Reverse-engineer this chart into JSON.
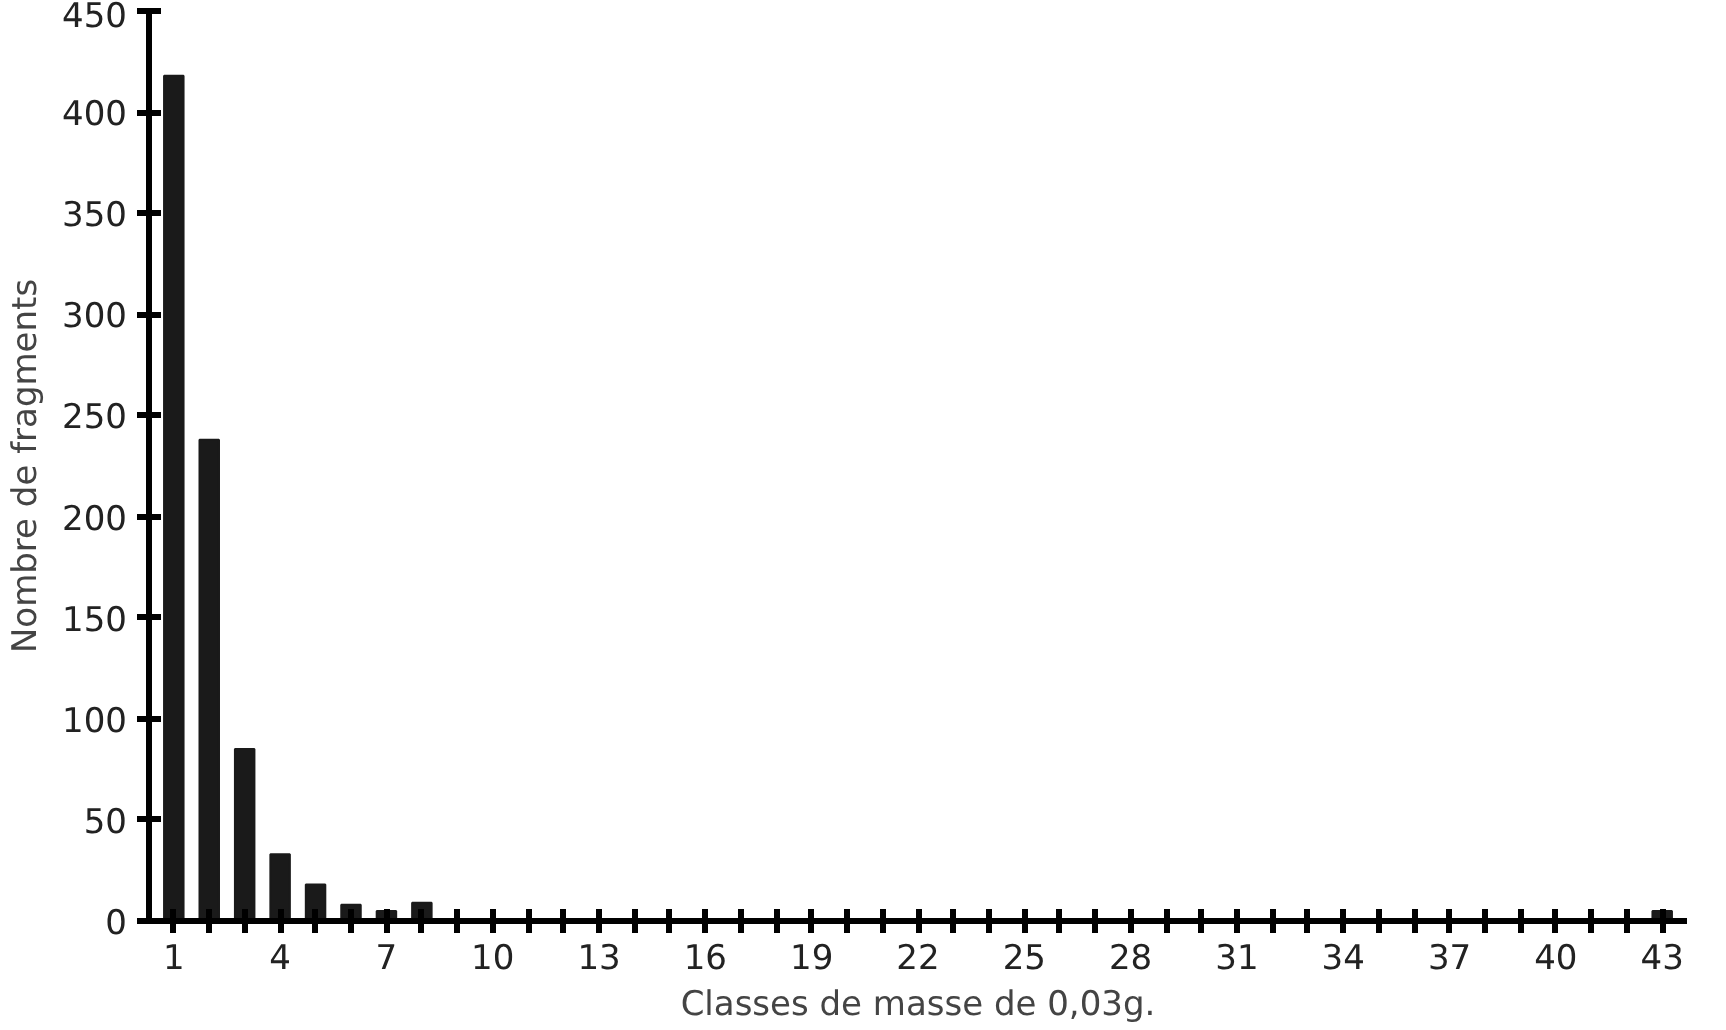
{
  "chart_data": {
    "type": "bar",
    "xlabel": "Classes de masse de 0,03g.",
    "ylabel": "Nombre de fragments",
    "categories": [
      "1",
      null,
      null,
      "4",
      null,
      null,
      "7",
      null,
      null,
      "10",
      null,
      null,
      "13",
      null,
      null,
      "16",
      null,
      null,
      "19",
      null,
      null,
      "22",
      null,
      null,
      "25",
      null,
      null,
      "28",
      null,
      null,
      "31",
      null,
      null,
      "34",
      null,
      null,
      "37",
      null,
      null,
      "40",
      null,
      null,
      "43"
    ],
    "values": [
      418,
      238,
      85,
      33,
      18,
      8,
      5,
      9,
      null,
      null,
      null,
      null,
      null,
      null,
      null,
      null,
      0,
      null,
      0,
      null,
      null,
      null,
      null,
      0,
      0,
      0,
      0,
      0,
      0,
      0,
      0,
      0,
      0,
      0,
      0,
      0,
      0,
      0,
      0,
      0,
      0,
      0,
      5
    ],
    "color": "#1a1a1a",
    "ylim": [
      0,
      450
    ],
    "yticks": [
      0,
      50,
      100,
      150,
      200,
      250,
      300,
      350,
      400,
      450
    ],
    "grid": false
  }
}
